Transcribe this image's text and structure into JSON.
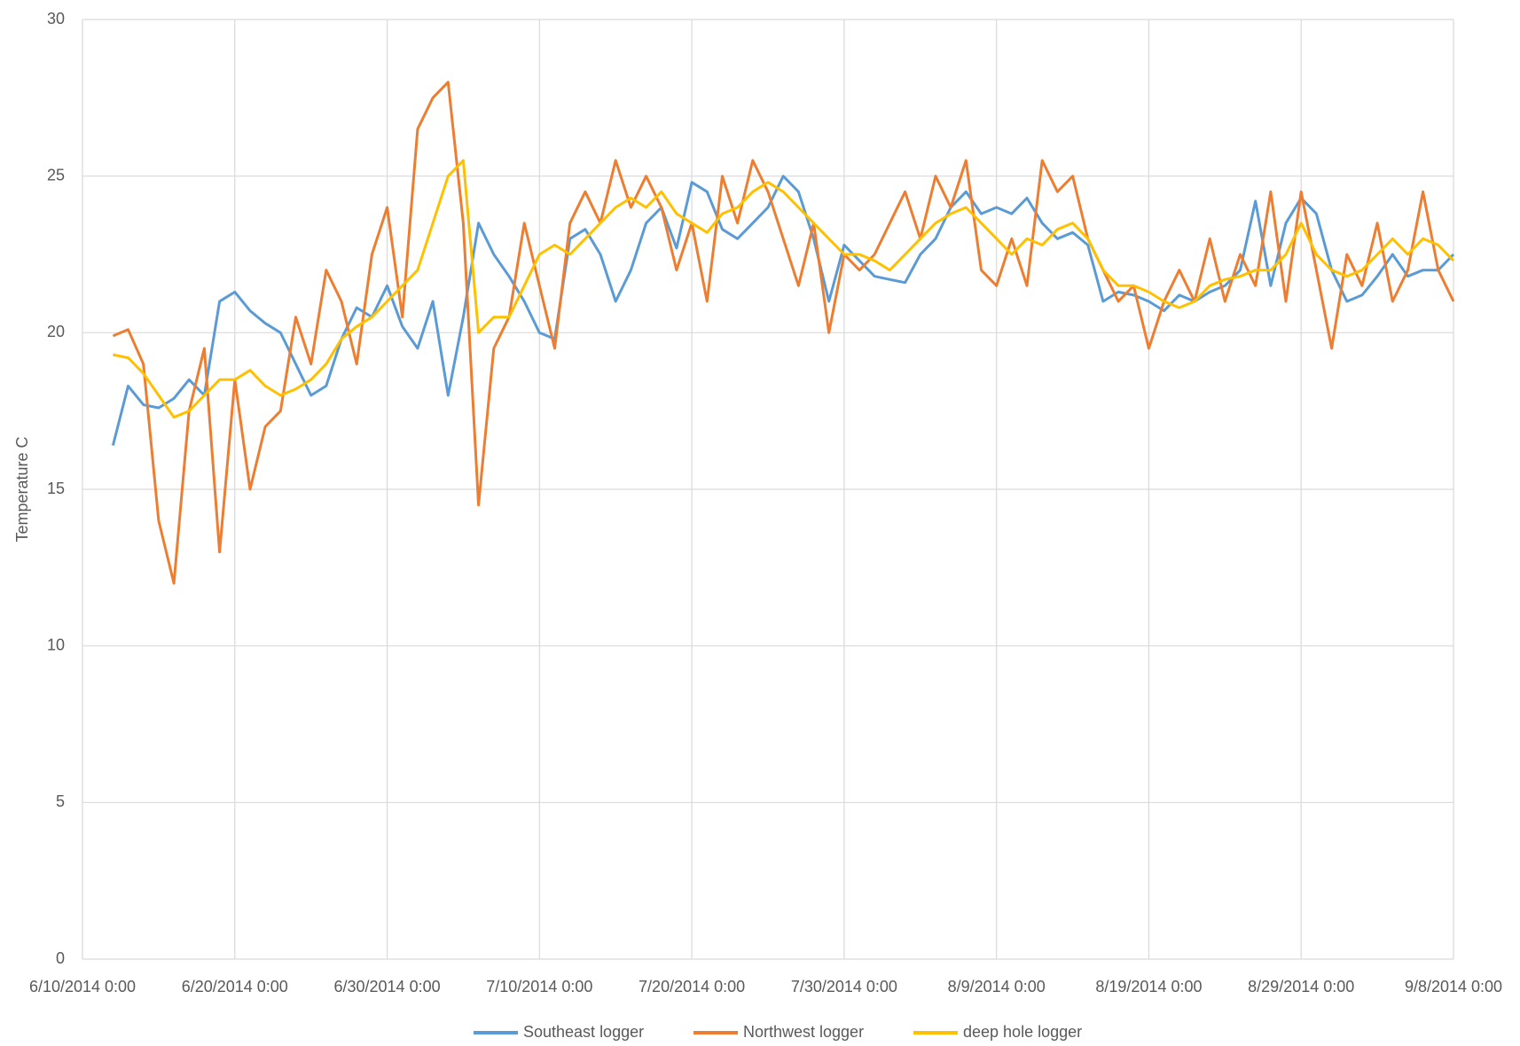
{
  "chart_data": {
    "type": "line",
    "y_label": "Temperature C",
    "x": [
      "6/12/2014 0:00",
      "6/13/2014 0:00",
      "6/14/2014 0:00",
      "6/15/2014 0:00",
      "6/16/2014 0:00",
      "6/17/2014 0:00",
      "6/18/2014 0:00",
      "6/19/2014 0:00",
      "6/20/2014 0:00",
      "6/21/2014 0:00",
      "6/22/2014 0:00",
      "6/23/2014 0:00",
      "6/24/2014 0:00",
      "6/25/2014 0:00",
      "6/26/2014 0:00",
      "6/27/2014 0:00",
      "6/28/2014 0:00",
      "6/29/2014 0:00",
      "6/30/2014 0:00",
      "7/1/2014 0:00",
      "7/2/2014 0:00",
      "7/3/2014 0:00",
      "7/4/2014 0:00",
      "7/5/2014 0:00",
      "7/6/2014 0:00",
      "7/7/2014 0:00",
      "7/8/2014 0:00",
      "7/9/2014 0:00",
      "7/10/2014 0:00",
      "7/11/2014 0:00",
      "7/12/2014 0:00",
      "7/13/2014 0:00",
      "7/14/2014 0:00",
      "7/15/2014 0:00",
      "7/16/2014 0:00",
      "7/17/2014 0:00",
      "7/18/2014 0:00",
      "7/19/2014 0:00",
      "7/20/2014 0:00",
      "7/21/2014 0:00",
      "7/22/2014 0:00",
      "7/23/2014 0:00",
      "7/24/2014 0:00",
      "7/25/2014 0:00",
      "7/26/2014 0:00",
      "7/27/2014 0:00",
      "7/28/2014 0:00",
      "7/29/2014 0:00",
      "7/30/2014 0:00",
      "7/31/2014 0:00",
      "8/1/2014 0:00",
      "8/2/2014 0:00",
      "8/3/2014 0:00",
      "8/4/2014 0:00",
      "8/5/2014 0:00",
      "8/6/2014 0:00",
      "8/7/2014 0:00",
      "8/8/2014 0:00",
      "8/9/2014 0:00",
      "8/10/2014 0:00",
      "8/11/2014 0:00",
      "8/12/2014 0:00",
      "8/13/2014 0:00",
      "8/14/2014 0:00",
      "8/15/2014 0:00",
      "8/16/2014 0:00",
      "8/17/2014 0:00",
      "8/18/2014 0:00",
      "8/19/2014 0:00",
      "8/20/2014 0:00",
      "8/21/2014 0:00",
      "8/22/2014 0:00",
      "8/23/2014 0:00",
      "8/24/2014 0:00",
      "8/25/2014 0:00",
      "8/26/2014 0:00",
      "8/27/2014 0:00",
      "8/28/2014 0:00",
      "8/29/2014 0:00",
      "8/30/2014 0:00",
      "8/31/2014 0:00",
      "9/1/2014 0:00",
      "9/2/2014 0:00",
      "9/3/2014 0:00",
      "9/4/2014 0:00",
      "9/5/2014 0:00",
      "9/6/2014 0:00",
      "9/7/2014 0:00",
      "9/8/2014 0:00"
    ],
    "series": [
      {
        "name": "Southeast logger",
        "color": "#5b9bd5",
        "values": [
          16.4,
          18.3,
          17.7,
          17.6,
          17.9,
          18.5,
          18.0,
          21.0,
          21.3,
          20.7,
          20.3,
          20.0,
          19.0,
          18.0,
          18.3,
          19.8,
          20.8,
          20.5,
          21.5,
          20.2,
          19.5,
          21.0,
          18.0,
          20.5,
          23.5,
          22.5,
          21.8,
          21.0,
          20.0,
          19.8,
          23.0,
          23.3,
          22.5,
          21.0,
          22.0,
          23.5,
          24.0,
          22.7,
          24.8,
          24.5,
          23.3,
          23.0,
          23.5,
          24.0,
          25.0,
          24.5,
          23.0,
          21.0,
          22.8,
          22.3,
          21.8,
          21.7,
          21.6,
          22.5,
          23.0,
          24.0,
          24.5,
          23.8,
          24.0,
          23.8,
          24.3,
          23.5,
          23.0,
          23.2,
          22.8,
          21.0,
          21.3,
          21.2,
          21.0,
          20.7,
          21.2,
          21.0,
          21.3,
          21.5,
          22.0,
          24.2,
          21.5,
          23.5,
          24.3,
          23.8,
          22.0,
          21.0,
          21.2,
          21.8,
          22.5,
          21.8,
          22.0,
          22.0,
          22.5
        ]
      },
      {
        "name": "Northwest logger",
        "color": "#ed7d31",
        "values": [
          19.9,
          20.1,
          19.0,
          14.0,
          12.0,
          17.5,
          19.5,
          13.0,
          18.5,
          15.0,
          17.0,
          17.5,
          20.5,
          19.0,
          22.0,
          21.0,
          19.0,
          22.5,
          24.0,
          20.5,
          26.5,
          27.5,
          28.0,
          23.5,
          14.5,
          19.5,
          20.5,
          23.5,
          21.5,
          19.5,
          23.5,
          24.5,
          23.5,
          25.5,
          24.0,
          25.0,
          24.0,
          22.0,
          23.5,
          21.0,
          25.0,
          23.5,
          25.5,
          24.5,
          23.0,
          21.5,
          23.5,
          20.0,
          22.5,
          22.0,
          22.5,
          23.5,
          24.5,
          23.0,
          25.0,
          24.0,
          25.5,
          22.0,
          21.5,
          23.0,
          21.5,
          25.5,
          24.5,
          25.0,
          23.0,
          22.0,
          21.0,
          21.5,
          19.5,
          21.0,
          22.0,
          21.0,
          23.0,
          21.0,
          22.5,
          21.5,
          24.5,
          21.0,
          24.5,
          22.0,
          19.5,
          22.5,
          21.5,
          23.5,
          21.0,
          22.0,
          24.5,
          22.0,
          21.0
        ]
      },
      {
        "name": "deep hole logger",
        "color": "#ffc000",
        "values": [
          19.3,
          19.2,
          18.7,
          18.0,
          17.3,
          17.5,
          18.0,
          18.5,
          18.5,
          18.8,
          18.3,
          18.0,
          18.2,
          18.5,
          19.0,
          19.8,
          20.2,
          20.5,
          21.0,
          21.5,
          22.0,
          23.5,
          25.0,
          25.5,
          20.0,
          20.5,
          20.5,
          21.5,
          22.5,
          22.8,
          22.5,
          23.0,
          23.5,
          24.0,
          24.3,
          24.0,
          24.5,
          23.8,
          23.5,
          23.2,
          23.8,
          24.0,
          24.5,
          24.8,
          24.5,
          24.0,
          23.5,
          23.0,
          22.5,
          22.5,
          22.3,
          22.0,
          22.5,
          23.0,
          23.5,
          23.8,
          24.0,
          23.5,
          23.0,
          22.5,
          23.0,
          22.8,
          23.3,
          23.5,
          23.0,
          22.0,
          21.5,
          21.5,
          21.3,
          21.0,
          20.8,
          21.0,
          21.5,
          21.7,
          21.8,
          22.0,
          22.0,
          22.5,
          23.5,
          22.5,
          22.0,
          21.8,
          22.0,
          22.5,
          23.0,
          22.5,
          23.0,
          22.8,
          22.3
        ]
      }
    ],
    "xlim": [
      "6/10/2014 0:00",
      "9/8/2014 0:00"
    ],
    "xticks": [
      "6/10/2014 0:00",
      "6/20/2014 0:00",
      "6/30/2014 0:00",
      "7/10/2014 0:00",
      "7/20/2014 0:00",
      "7/30/2014 0:00",
      "8/9/2014 0:00",
      "8/19/2014 0:00",
      "8/29/2014 0:00",
      "9/8/2014 0:00"
    ],
    "ylim": [
      0,
      30
    ],
    "yticks": [
      0,
      5,
      10,
      15,
      20,
      25,
      30
    ],
    "grid": true,
    "legend": "bottom"
  }
}
